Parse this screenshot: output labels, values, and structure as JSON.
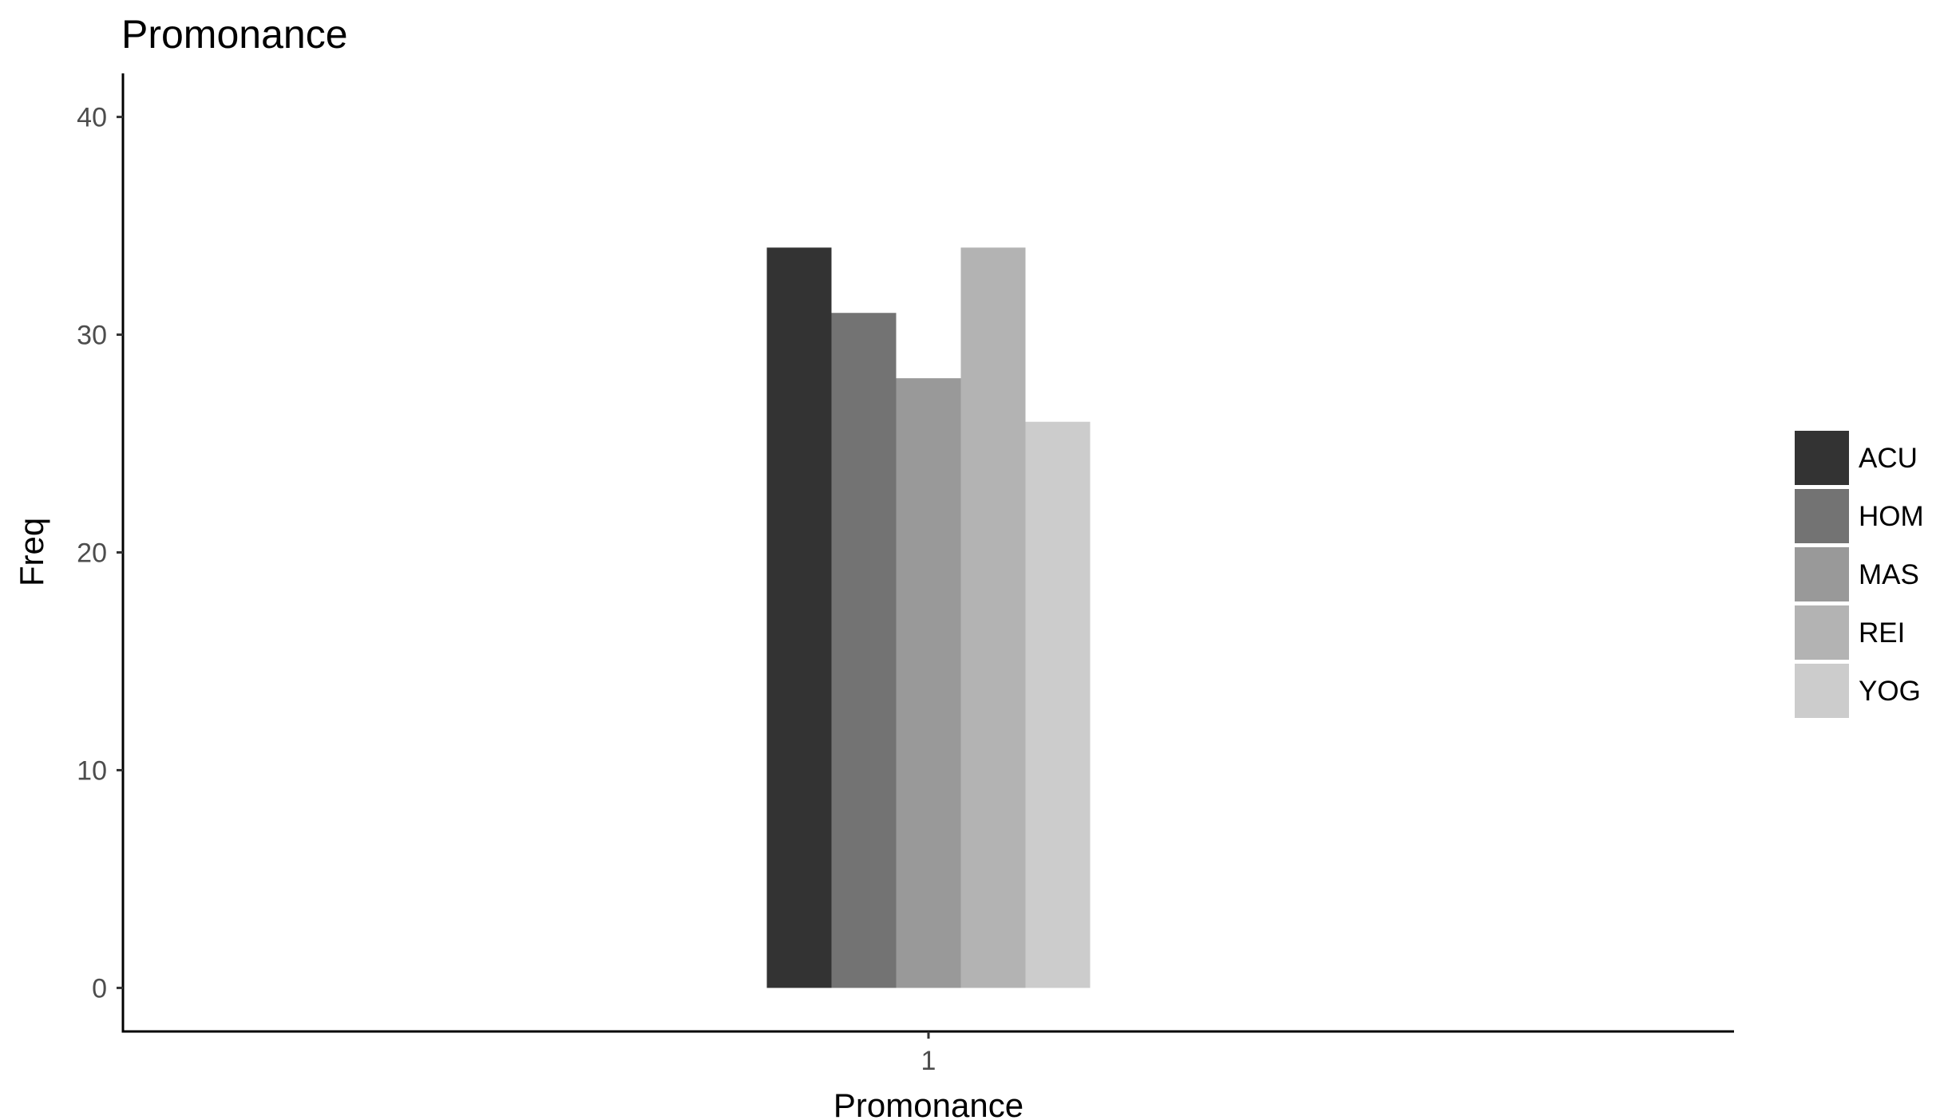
{
  "chart_data": {
    "type": "bar",
    "title": "Promonance",
    "xlabel": "Promonance",
    "ylabel": "Freq",
    "categories": [
      "1"
    ],
    "series": [
      {
        "name": "ACU",
        "values": [
          34
        ],
        "color": "#333333"
      },
      {
        "name": "HOM",
        "values": [
          31
        ],
        "color": "#737373"
      },
      {
        "name": "MAS",
        "values": [
          28
        ],
        "color": "#999999"
      },
      {
        "name": "REI",
        "values": [
          34
        ],
        "color": "#b3b3b3"
      },
      {
        "name": "YOG",
        "values": [
          26
        ],
        "color": "#cccccc"
      }
    ],
    "ylim": [
      -2,
      42
    ],
    "yticks": [
      0,
      10,
      20,
      30,
      40
    ],
    "grid": false,
    "legend_position": "right"
  }
}
